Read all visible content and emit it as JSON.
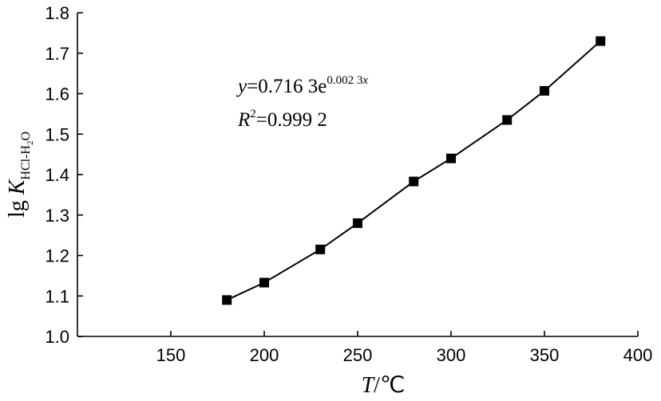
{
  "chart_data": {
    "type": "line",
    "x": [
      180,
      200,
      230,
      250,
      280,
      300,
      330,
      350,
      380
    ],
    "series": [
      {
        "values": [
          1.09,
          1.133,
          1.215,
          1.28,
          1.383,
          1.44,
          1.535,
          1.607,
          1.73
        ]
      }
    ],
    "xlim": [
      100,
      400
    ],
    "ylim": [
      1.0,
      1.8
    ],
    "x_ticks": [
      "150",
      "200",
      "250",
      "300",
      "350",
      "400"
    ],
    "y_ticks": [
      "1.0",
      "1.1",
      "1.2",
      "1.3",
      "1.4",
      "1.5",
      "1.6",
      "1.7",
      "1.8"
    ],
    "xlabel": {
      "var": "T",
      "unit": "/℃"
    },
    "ylabel": {
      "prefix": "lg ",
      "var": "K",
      "sub": "HCl-H",
      "sub2": "2",
      "sub3": "O"
    },
    "annotation": {
      "eq_var": "y",
      "eq_body": "=0.716 3e",
      "eq_exp": "0.002 3",
      "eq_exp_var": "x",
      "r2_var": "R",
      "r2_exp": "2",
      "r2_body": "=0.999 2"
    },
    "grid": false,
    "legend": "none",
    "marker": "square",
    "color": "#000000"
  }
}
